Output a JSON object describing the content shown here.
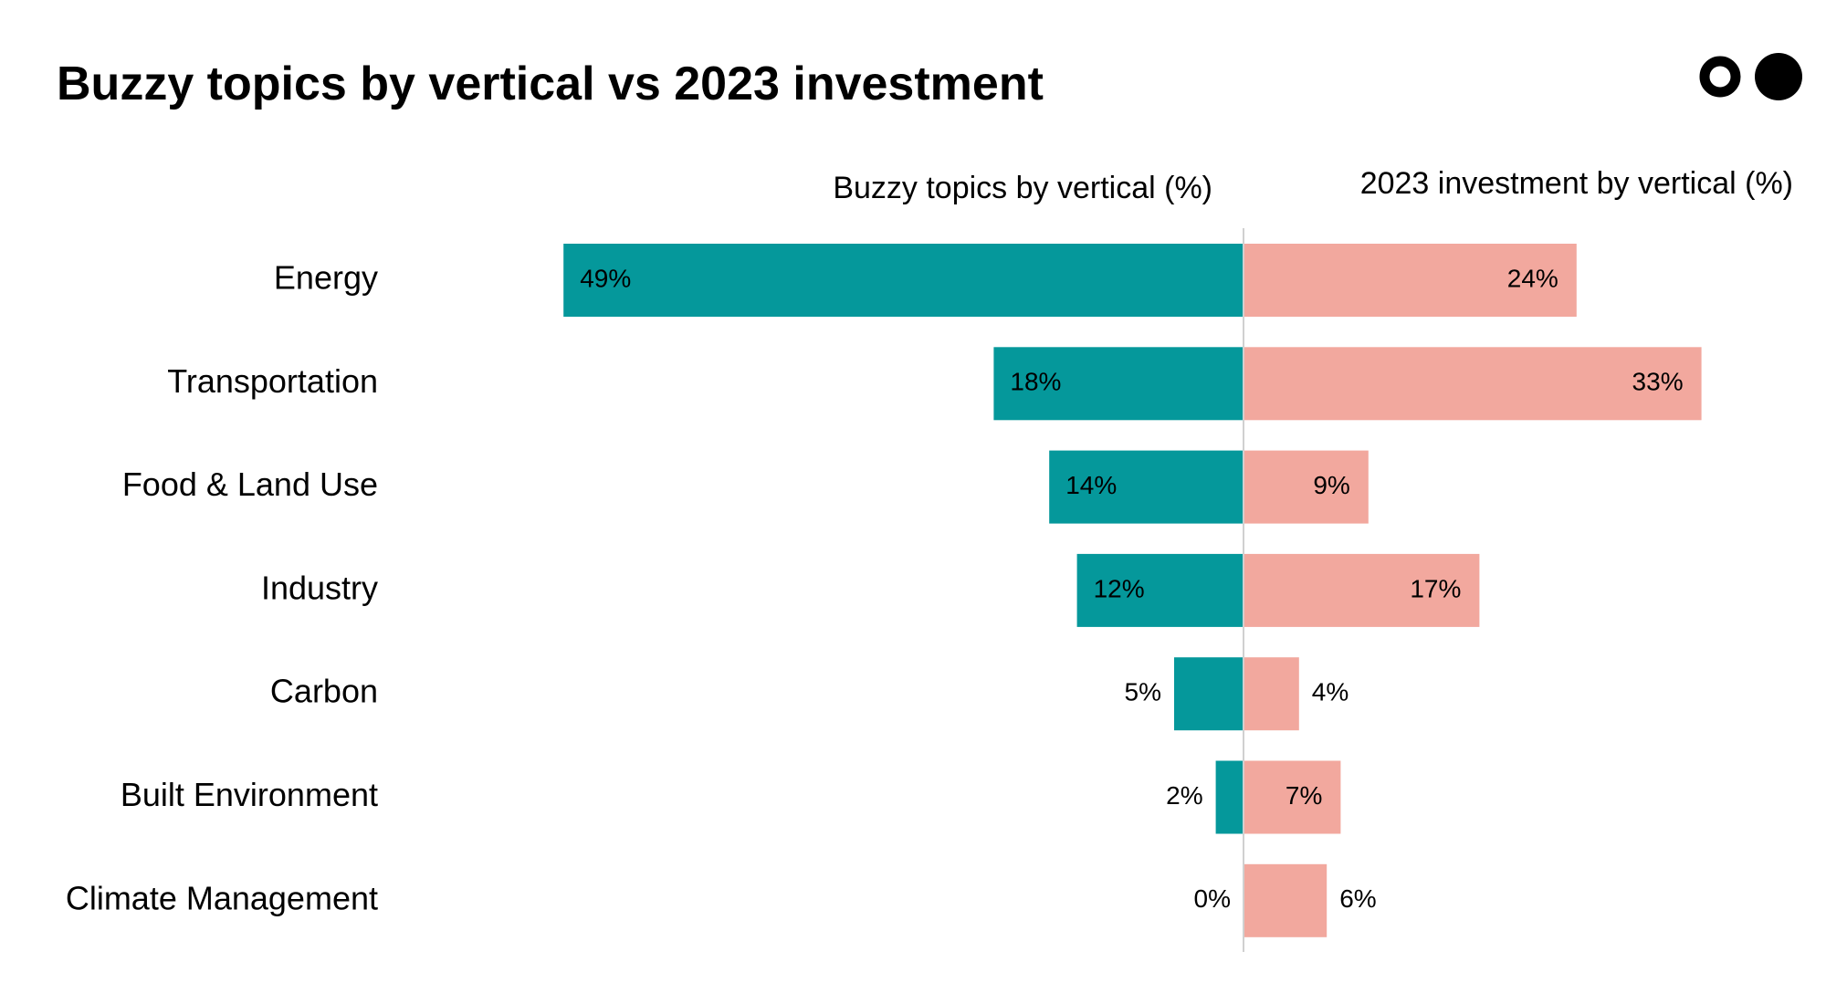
{
  "chart_data": {
    "type": "bar",
    "title": "Buzzy topics by vertical vs 2023 investment",
    "categories": [
      "Energy",
      "Transportation",
      "Food & Land Use",
      "Industry",
      "Carbon",
      "Built Environment",
      "Climate Management"
    ],
    "series": [
      {
        "name": "Buzzy topics by vertical (%)",
        "values": [
          49,
          18,
          14,
          12,
          5,
          2,
          0
        ],
        "labels": [
          "49%",
          "18%",
          "14%",
          "12%",
          "5%",
          "2%",
          "0%"
        ],
        "color": "#05989b",
        "direction": "left"
      },
      {
        "name": "2023 investment by vertical (%)",
        "values": [
          24,
          33,
          9,
          17,
          4,
          7,
          6
        ],
        "labels": [
          "24%",
          "33%",
          "9%",
          "17%",
          "4%",
          "7%",
          "6%"
        ],
        "color": "#f2a89e",
        "direction": "right"
      }
    ],
    "xlim": [
      0,
      49
    ],
    "grid": false,
    "legend": "none"
  },
  "colors": {
    "background": "#ffffff",
    "text": "#000000",
    "axis_line": "#d0d0d0"
  },
  "logo": {
    "icon": "two-dots-logo-icon"
  }
}
